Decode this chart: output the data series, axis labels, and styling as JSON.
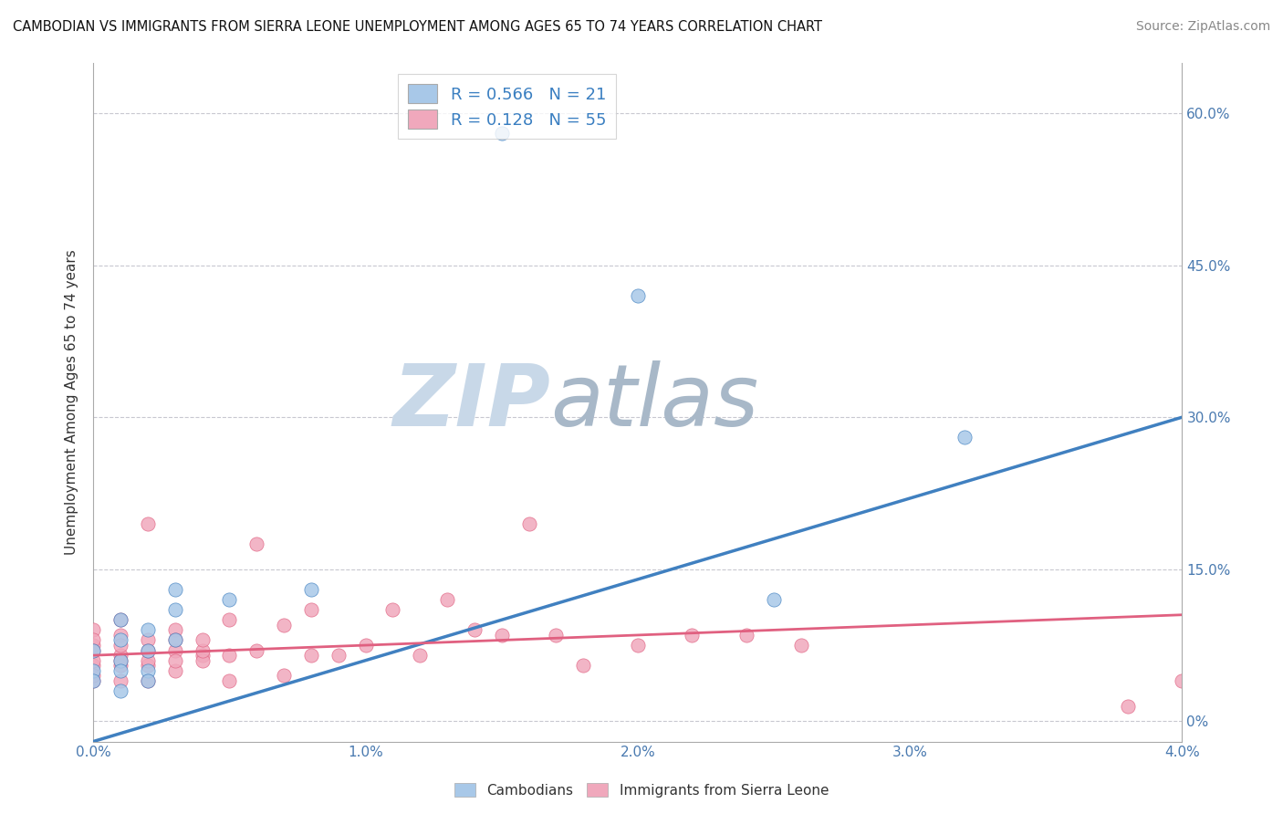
{
  "title": "CAMBODIAN VS IMMIGRANTS FROM SIERRA LEONE UNEMPLOYMENT AMONG AGES 65 TO 74 YEARS CORRELATION CHART",
  "source": "Source: ZipAtlas.com",
  "ylabel": "Unemployment Among Ages 65 to 74 years",
  "xlim": [
    0.0,
    0.04
  ],
  "ylim": [
    -0.02,
    0.65
  ],
  "yticks": [
    0.0,
    0.15,
    0.3,
    0.45,
    0.6
  ],
  "ytick_labels": [
    "0%",
    "15.0%",
    "30.0%",
    "45.0%",
    "60.0%"
  ],
  "xticks": [
    0.0,
    0.01,
    0.02,
    0.03,
    0.04
  ],
  "xtick_labels": [
    "0.0%",
    "1.0%",
    "2.0%",
    "3.0%",
    "4.0%"
  ],
  "cambodian_R": 0.566,
  "cambodian_N": 21,
  "sierra_leone_R": 0.128,
  "sierra_leone_N": 55,
  "blue_color": "#a8c8e8",
  "pink_color": "#f0a8bc",
  "blue_line_color": "#4080c0",
  "pink_line_color": "#e06080",
  "watermark_zip": "ZIP",
  "watermark_atlas": "atlas",
  "watermark_color_zip": "#c8d8e8",
  "watermark_color_atlas": "#a8b8c8",
  "cambodian_x": [
    0.0,
    0.0,
    0.0,
    0.001,
    0.001,
    0.001,
    0.001,
    0.001,
    0.002,
    0.002,
    0.002,
    0.002,
    0.003,
    0.003,
    0.003,
    0.005,
    0.008,
    0.015,
    0.02,
    0.025,
    0.032
  ],
  "cambodian_y": [
    0.05,
    0.07,
    0.04,
    0.06,
    0.08,
    0.05,
    0.1,
    0.03,
    0.07,
    0.05,
    0.09,
    0.04,
    0.08,
    0.11,
    0.13,
    0.12,
    0.13,
    0.58,
    0.42,
    0.12,
    0.28
  ],
  "sierra_leone_x": [
    0.0,
    0.0,
    0.0,
    0.0,
    0.0,
    0.0,
    0.0,
    0.0,
    0.001,
    0.001,
    0.001,
    0.001,
    0.001,
    0.001,
    0.001,
    0.002,
    0.002,
    0.002,
    0.002,
    0.002,
    0.002,
    0.003,
    0.003,
    0.003,
    0.003,
    0.003,
    0.004,
    0.004,
    0.004,
    0.004,
    0.005,
    0.005,
    0.005,
    0.006,
    0.006,
    0.007,
    0.007,
    0.008,
    0.008,
    0.009,
    0.01,
    0.011,
    0.012,
    0.013,
    0.014,
    0.015,
    0.016,
    0.017,
    0.018,
    0.02,
    0.022,
    0.024,
    0.026,
    0.038,
    0.04
  ],
  "sierra_leone_y": [
    0.055,
    0.075,
    0.06,
    0.09,
    0.04,
    0.08,
    0.07,
    0.045,
    0.065,
    0.085,
    0.055,
    0.1,
    0.04,
    0.075,
    0.06,
    0.055,
    0.08,
    0.04,
    0.06,
    0.07,
    0.195,
    0.05,
    0.09,
    0.07,
    0.06,
    0.08,
    0.065,
    0.06,
    0.07,
    0.08,
    0.065,
    0.04,
    0.1,
    0.07,
    0.175,
    0.045,
    0.095,
    0.065,
    0.11,
    0.065,
    0.075,
    0.11,
    0.065,
    0.12,
    0.09,
    0.085,
    0.195,
    0.085,
    0.055,
    0.075,
    0.085,
    0.085,
    0.075,
    0.015,
    0.04
  ],
  "blue_line_x0": 0.0,
  "blue_line_y0": -0.02,
  "blue_line_x1": 0.04,
  "blue_line_y1": 0.3,
  "pink_line_x0": 0.0,
  "pink_line_y0": 0.065,
  "pink_line_x1": 0.04,
  "pink_line_y1": 0.105
}
